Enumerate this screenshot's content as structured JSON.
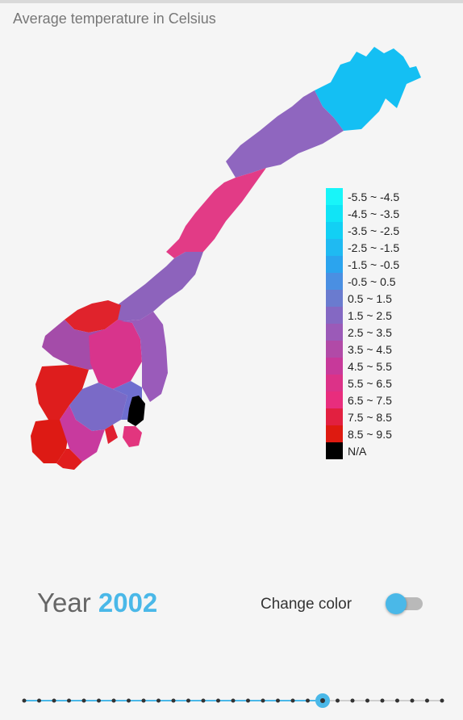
{
  "title": "Average temperature in Celsius",
  "legend": [
    {
      "label": "-5.5 ~ -4.5",
      "color": "#18f5f9"
    },
    {
      "label": "-4.5 ~ -3.5",
      "color": "#10e4f6"
    },
    {
      "label": "-3.5 ~ -2.5",
      "color": "#12d0f4"
    },
    {
      "label": "-2.5 ~ -1.5",
      "color": "#1fbaf2"
    },
    {
      "label": "-1.5 ~ -0.5",
      "color": "#2ba4ee"
    },
    {
      "label": "-0.5 ~ 0.5",
      "color": "#4a8fe2"
    },
    {
      "label": "0.5 ~ 1.5",
      "color": "#6a7bcf"
    },
    {
      "label": "1.5 ~ 2.5",
      "color": "#8468c3"
    },
    {
      "label": "2.5 ~ 3.5",
      "color": "#9b5ab8"
    },
    {
      "label": "3.5 ~ 4.5",
      "color": "#b14aa7"
    },
    {
      "label": "4.5 ~ 5.5",
      "color": "#c7399a"
    },
    {
      "label": "5.5 ~ 6.5",
      "color": "#dc3288"
    },
    {
      "label": "6.5 ~ 7.5",
      "color": "#e82d7d"
    },
    {
      "label": "7.5 ~ 8.5",
      "color": "#e22040"
    },
    {
      "label": "8.5 ~ 9.5",
      "color": "#de1a10"
    },
    {
      "label": "N/A",
      "color": "#000000"
    }
  ],
  "year": {
    "prefix": "Year",
    "value": "2002"
  },
  "toggle": {
    "label": "Change color",
    "on": false
  },
  "slider": {
    "count": 29,
    "selected": 20
  }
}
